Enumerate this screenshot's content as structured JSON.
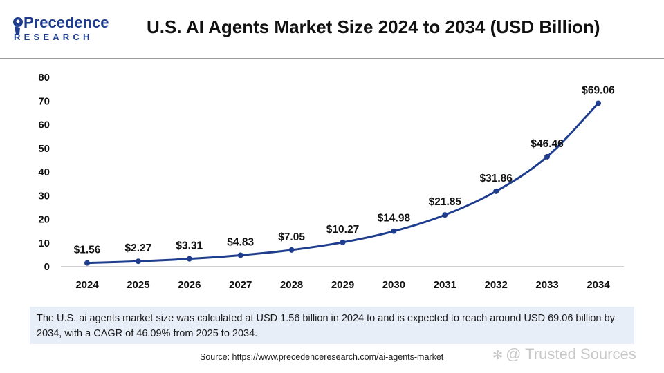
{
  "header": {
    "logo_top": "Precedence",
    "logo_bottom": "RESEARCH",
    "title": "U.S. AI Agents Market Size 2024 to 2034 (USD Billion)"
  },
  "chart_data": {
    "type": "line",
    "title": "U.S. AI Agents Market Size 2024 to 2034 (USD Billion)",
    "x": [
      "2024",
      "2025",
      "2026",
      "2027",
      "2028",
      "2029",
      "2030",
      "2031",
      "2032",
      "2033",
      "2034"
    ],
    "series": [
      {
        "values": [
          1.56,
          2.27,
          3.31,
          4.83,
          7.05,
          10.27,
          14.98,
          21.85,
          31.86,
          46.46,
          69.06
        ],
        "labels": [
          "$1.56",
          "$2.27",
          "$3.31",
          "$4.83",
          "$7.05",
          "$10.27",
          "$14.98",
          "$21.85",
          "$31.86",
          "$46.46",
          "$69.06"
        ]
      }
    ],
    "ylim": [
      0,
      80
    ],
    "yticks": [
      "0",
      "10",
      "20",
      "30",
      "40",
      "50",
      "60",
      "70",
      "80"
    ],
    "grid": false,
    "legend": "none",
    "line_color": "#1f3d8f"
  },
  "summary": {
    "text": "The U.S. ai agents market size was calculated at USD 1.56  billion in 2024 to and is expected to reach around USD 69.06 billion by 2034, with a CAGR of 46.09% from 2025 to 2034."
  },
  "source": "Source: https://www.precedenceresearch.com/ai-agents-market",
  "watermark": {
    "icon": "wechat-icon",
    "text": "@ Trusted Sources"
  },
  "colors": {
    "brand_navy": "#1f3d8f",
    "summary_bg": "#e8eef7"
  }
}
